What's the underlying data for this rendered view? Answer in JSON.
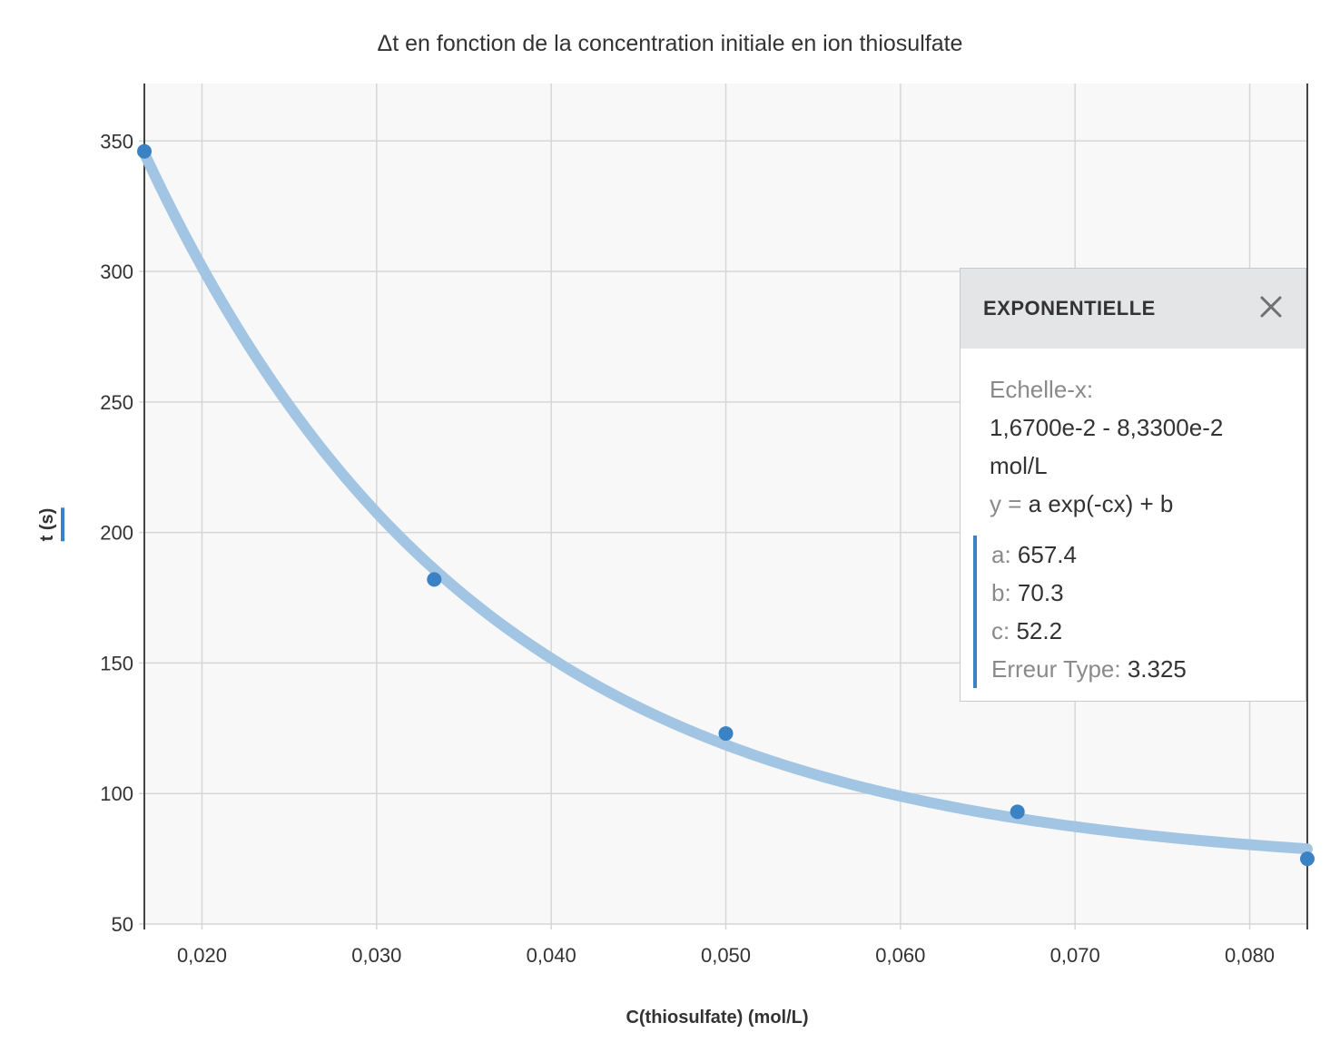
{
  "chart_data": {
    "type": "scatter",
    "title": "Δt en fonction de la concentration initiale en ion thiosulfate",
    "xlabel": "C(thiosulfate) (mol/L)",
    "ylabel": "t (s)",
    "xlim": [
      0.0167,
      0.0833
    ],
    "ylim": [
      50,
      372
    ],
    "x_ticks": [
      0.02,
      0.03,
      0.04,
      0.05,
      0.06,
      0.07,
      0.08
    ],
    "x_tick_labels": [
      "0,020",
      "0,030",
      "0,040",
      "0,050",
      "0,060",
      "0,070",
      "0,080"
    ],
    "y_ticks": [
      50,
      100,
      150,
      200,
      250,
      300,
      350
    ],
    "y_tick_labels": [
      "50",
      "100",
      "150",
      "200",
      "250",
      "300",
      "350"
    ],
    "grid": true,
    "series": [
      {
        "points": [
          {
            "x": 0.0167,
            "y": 346
          },
          {
            "x": 0.0333,
            "y": 182
          },
          {
            "x": 0.05,
            "y": 123
          },
          {
            "x": 0.0667,
            "y": 93
          },
          {
            "x": 0.0833,
            "y": 75
          }
        ]
      }
    ],
    "fit": {
      "model": "exponential",
      "a": 657.4,
      "b": 70.3,
      "c": 52.2
    },
    "colors": {
      "points": "#3a82c4",
      "fit_curve": "#a1c5e3",
      "grid": "#d6d6d6",
      "plot_background": "#f8f8f8"
    }
  },
  "fit_panel": {
    "title": "EXPONENTIELLE",
    "close_icon": "close-icon",
    "scale_label": "Echelle-x:",
    "scale_range": "1,6700e-2 - 8,3300e-2",
    "scale_unit": "mol/L",
    "equation_prefix": "y =",
    "equation_body": "a exp(-cx) + b",
    "params": [
      {
        "label": "a:",
        "value": "657.4"
      },
      {
        "label": "b:",
        "value": "70.3"
      },
      {
        "label": "c:",
        "value": "52.2"
      },
      {
        "label": "Erreur Type:",
        "value": "3.325"
      }
    ]
  }
}
